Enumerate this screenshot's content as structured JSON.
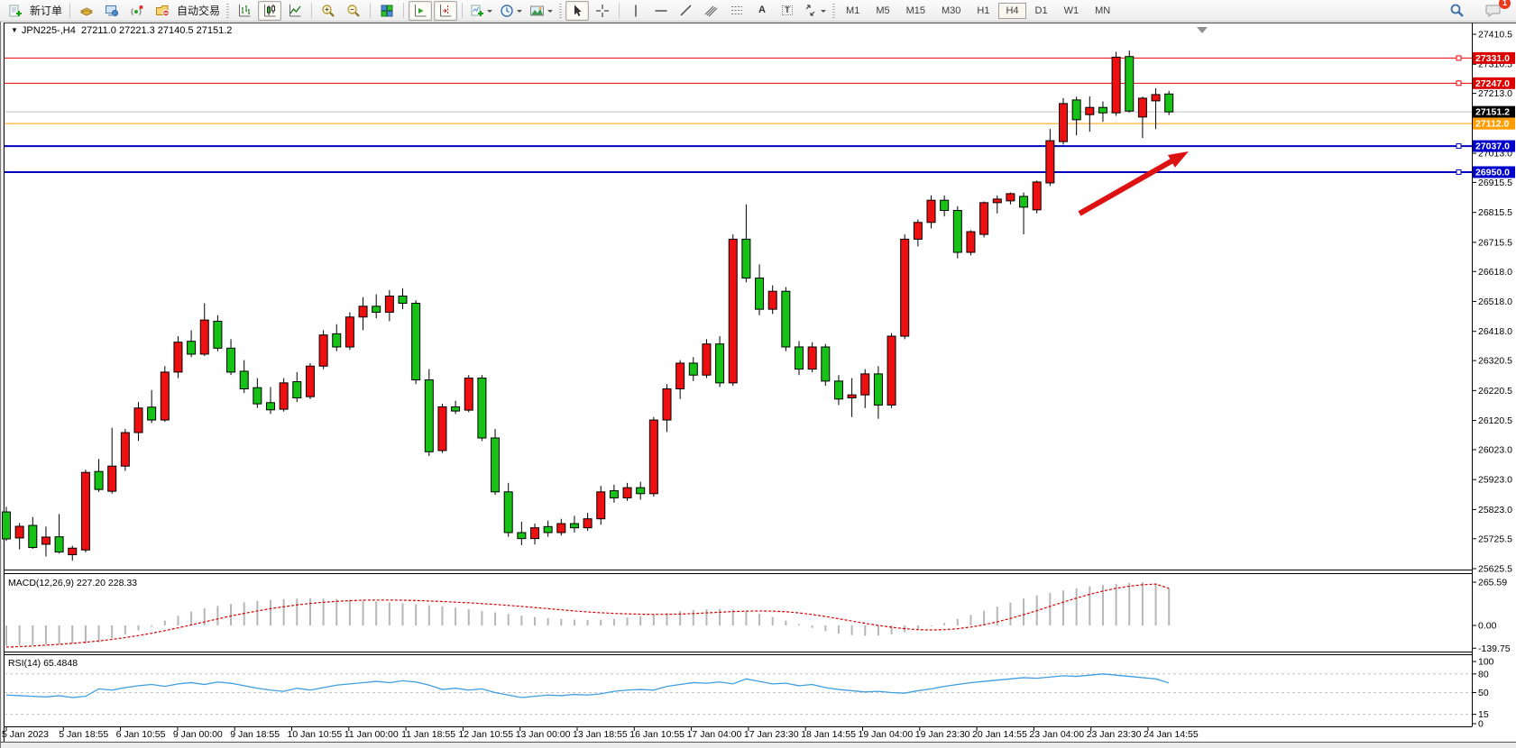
{
  "toolbar": {
    "new_order_label": "新订单",
    "auto_trading_label": "自动交易",
    "timeframes": [
      "M1",
      "M5",
      "M15",
      "M30",
      "H1",
      "H4",
      "D1",
      "W1",
      "MN"
    ],
    "active_timeframe": "H4",
    "notification_count": "1",
    "text_tool_glyph": "A",
    "label_tool_glyph": "T"
  },
  "chart": {
    "menu_glyph": "▼",
    "symbol_period": "JPN225-,H4",
    "ohlc_text": "27211.0 27221.3 27140.5 27151.2",
    "macd_label": "MACD(12,26,9) 227.20 228.33",
    "rsi_label": "RSI(14) 65.4848"
  },
  "chart_data": {
    "type": "candlestick",
    "symbol": "JPN225-",
    "period": "H4",
    "title": "JPN225-,H4  27211.0 27221.3 27140.5 27151.2",
    "current_ohlc": {
      "open": 27211.0,
      "high": 27221.3,
      "low": 27140.5,
      "close": 27151.2
    },
    "ylim": [
      25625.5,
      27410.5
    ],
    "grid": false,
    "legend_position": "none",
    "colors": {
      "bull": "#ee1010",
      "bear": "#16c216",
      "wick": "#000000",
      "macd_hist": "#b6b6b6",
      "macd_signal": "#d70000",
      "rsi_line": "#3f9fe0",
      "level_red": "#ee0000",
      "level_orange": "#ff9d00",
      "level_blue": "#0000bb",
      "current_line": "#c0c0c0",
      "arrow": "#dd1111"
    },
    "price_axis_ticks": [
      27410.5,
      27310.5,
      27213.0,
      27013.0,
      26915.5,
      26815.5,
      26715.5,
      26618.0,
      26518.0,
      26418.0,
      26320.5,
      26220.5,
      26120.5,
      26023.0,
      25923.0,
      25823.0,
      25725.5,
      25625.5
    ],
    "price_lines": [
      {
        "value": 27331.0,
        "label": "27331.0",
        "color": "#ee0000",
        "badge_bg": "#dd0000",
        "width": 1,
        "marker": true
      },
      {
        "value": 27247.0,
        "label": "27247.0",
        "color": "#ee0000",
        "badge_bg": "#dd0000",
        "width": 1,
        "marker": true
      },
      {
        "value": 27151.2,
        "label": "27151.2",
        "color": "#c0c0c0",
        "badge_bg": "#000000",
        "width": 1,
        "marker": false
      },
      {
        "value": 27112.0,
        "label": "27112.0",
        "color": "#ff9d00",
        "badge_bg": "#ff9d00",
        "width": 1,
        "marker": false
      },
      {
        "value": 27037.0,
        "label": "27037.0",
        "color": "#0000bb",
        "badge_bg": "#0000cc",
        "width": 2,
        "marker": true
      },
      {
        "value": 26950.0,
        "label": "26950.0",
        "color": "#0000bb",
        "badge_bg": "#0000cc",
        "width": 2,
        "marker": true
      }
    ],
    "time_labels": [
      "5 Jan 2023",
      "5 Jan 18:55",
      "6 Jan 10:55",
      "9 Jan 00:00",
      "9 Jan 18:55",
      "10 Jan 10:55",
      "11 Jan 00:00",
      "11 Jan 18:55",
      "12 Jan 10:55",
      "13 Jan 00:00",
      "13 Jan 18:55",
      "16 Jan 10:55",
      "17 Jan 04:00",
      "17 Jan 23:30",
      "18 Jan 14:55",
      "19 Jan 04:00",
      "19 Jan 23:30",
      "20 Jan 14:55",
      "23 Jan 04:00",
      "23 Jan 23:30",
      "24 Jan 14:55"
    ],
    "candles": [
      [
        25815,
        25832,
        25718,
        25725
      ],
      [
        25728,
        25778,
        25690,
        25767
      ],
      [
        25770,
        25798,
        25692,
        25696
      ],
      [
        25707,
        25766,
        25666,
        25731
      ],
      [
        25732,
        25808,
        25676,
        25681
      ],
      [
        25672,
        25702,
        25652,
        25694
      ],
      [
        25688,
        25956,
        25680,
        25947
      ],
      [
        25950,
        25992,
        25882,
        25890
      ],
      [
        25884,
        26096,
        25876,
        25968
      ],
      [
        25968,
        26092,
        25952,
        26080
      ],
      [
        26080,
        26182,
        26052,
        26162
      ],
      [
        26165,
        26222,
        26112,
        26122
      ],
      [
        26122,
        26302,
        26116,
        26282
      ],
      [
        26282,
        26402,
        26262,
        26382
      ],
      [
        26385,
        26422,
        26332,
        26342
      ],
      [
        26342,
        26512,
        26336,
        26456
      ],
      [
        26452,
        26472,
        26352,
        26362
      ],
      [
        26362,
        26392,
        26272,
        26282
      ],
      [
        26285,
        26322,
        26212,
        26226
      ],
      [
        26230,
        26262,
        26162,
        26176
      ],
      [
        26180,
        26232,
        26142,
        26156
      ],
      [
        26158,
        26262,
        26150,
        26246
      ],
      [
        26250,
        26282,
        26182,
        26196
      ],
      [
        26200,
        26312,
        26192,
        26302
      ],
      [
        26302,
        26422,
        26292,
        26406
      ],
      [
        26410,
        26442,
        26352,
        26366
      ],
      [
        26366,
        26482,
        26356,
        26466
      ],
      [
        26466,
        26532,
        26422,
        26502
      ],
      [
        26502,
        26542,
        26462,
        26482
      ],
      [
        26482,
        26556,
        26452,
        26536
      ],
      [
        26536,
        26562,
        26492,
        26512
      ],
      [
        26512,
        26522,
        26242,
        26256
      ],
      [
        26256,
        26292,
        26002,
        26016
      ],
      [
        26020,
        26176,
        26012,
        26166
      ],
      [
        26166,
        26186,
        26142,
        26152
      ],
      [
        26155,
        26272,
        26148,
        26262
      ],
      [
        26262,
        26272,
        26052,
        26062
      ],
      [
        26062,
        26092,
        25872,
        25882
      ],
      [
        25882,
        25912,
        25732,
        25746
      ],
      [
        25746,
        25782,
        25704,
        25726
      ],
      [
        25726,
        25776,
        25706,
        25762
      ],
      [
        25766,
        25786,
        25732,
        25746
      ],
      [
        25746,
        25792,
        25736,
        25776
      ],
      [
        25776,
        25802,
        25746,
        25762
      ],
      [
        25762,
        25812,
        25752,
        25792
      ],
      [
        25792,
        25902,
        25772,
        25882
      ],
      [
        25886,
        25906,
        25846,
        25862
      ],
      [
        25862,
        25912,
        25852,
        25896
      ],
      [
        25896,
        25916,
        25856,
        25876
      ],
      [
        25876,
        26132,
        25866,
        26122
      ],
      [
        26122,
        26242,
        26082,
        26226
      ],
      [
        26226,
        26322,
        26192,
        26312
      ],
      [
        26312,
        26332,
        26252,
        26272
      ],
      [
        26272,
        26392,
        26262,
        26376
      ],
      [
        26376,
        26402,
        26232,
        26246
      ],
      [
        26246,
        26742,
        26236,
        26726
      ],
      [
        26726,
        26842,
        26582,
        26596
      ],
      [
        26596,
        26642,
        26472,
        26492
      ],
      [
        26492,
        26572,
        26476,
        26552
      ],
      [
        26552,
        26566,
        26352,
        26366
      ],
      [
        26366,
        26386,
        26272,
        26292
      ],
      [
        26292,
        26382,
        26282,
        26366
      ],
      [
        26366,
        26376,
        26236,
        26252
      ],
      [
        26252,
        26272,
        26172,
        26192
      ],
      [
        26196,
        26262,
        26132,
        26206
      ],
      [
        26206,
        26292,
        26162,
        26276
      ],
      [
        26276,
        26302,
        26126,
        26172
      ],
      [
        26172,
        26412,
        26162,
        26402
      ],
      [
        26402,
        26742,
        26392,
        26726
      ],
      [
        26726,
        26792,
        26702,
        26782
      ],
      [
        26782,
        26872,
        26762,
        26856
      ],
      [
        26856,
        26872,
        26802,
        26822
      ],
      [
        26822,
        26836,
        26662,
        26682
      ],
      [
        26682,
        26756,
        26672,
        26751
      ],
      [
        26742,
        26852,
        26732,
        26848
      ],
      [
        26848,
        26872,
        26812,
        26860
      ],
      [
        26854,
        26882,
        26842,
        26878
      ],
      [
        26869,
        26882,
        26742,
        26833
      ],
      [
        26824,
        26922,
        26812,
        26917
      ],
      [
        26914,
        27094,
        26904,
        27055
      ],
      [
        27052,
        27197,
        27042,
        27179
      ],
      [
        27191,
        27202,
        27073,
        27125
      ],
      [
        27142,
        27203,
        27085,
        27166
      ],
      [
        27166,
        27186,
        27118,
        27148
      ],
      [
        27148,
        27352,
        27138,
        27334
      ],
      [
        27336,
        27356,
        27149,
        27154
      ],
      [
        27134,
        27202,
        27064,
        27197
      ],
      [
        27188,
        27230,
        27094,
        27209
      ],
      [
        27211.0,
        27221.3,
        27140.5,
        27151.2
      ]
    ],
    "macd": {
      "label": "MACD(12,26,9)",
      "current_macd": 227.2,
      "current_signal": 228.33,
      "axis_values": [
        265.59,
        0,
        -139.75
      ],
      "axis_labels": [
        "265.59",
        "0.00",
        "-139.75"
      ],
      "values": [
        -125,
        -122,
        -120,
        -118,
        -115,
        -112,
        -110,
        -105,
        -80,
        -55,
        -30,
        -8,
        30,
        60,
        85,
        105,
        120,
        132,
        142,
        150,
        157,
        162,
        165,
        166,
        165,
        162,
        158,
        153,
        148,
        142,
        136,
        130,
        124,
        118,
        110,
        100,
        90,
        80,
        70,
        60,
        52,
        45,
        40,
        36,
        34,
        35,
        40,
        48,
        58,
        68,
        78,
        88,
        95,
        100,
        102,
        98,
        88,
        72,
        52,
        30,
        8,
        -15,
        -35,
        -50,
        -60,
        -64,
        -62,
        -55,
        -42,
        -25,
        -5,
        15,
        40,
        65,
        90,
        115,
        140,
        165,
        185,
        200,
        215,
        228,
        240,
        248,
        256,
        262,
        265.59,
        258,
        227.2
      ],
      "signal": [
        -133,
        -130,
        -126,
        -121,
        -116,
        -110,
        -103,
        -95,
        -86,
        -75,
        -62,
        -48,
        -32,
        -15,
        3,
        22,
        40,
        58,
        74,
        89,
        103,
        115,
        126,
        135,
        142,
        148,
        152,
        155,
        156,
        156,
        155,
        153,
        150,
        147,
        143,
        139,
        134,
        129,
        123,
        117,
        110,
        103,
        96,
        89,
        83,
        78,
        74,
        71,
        69,
        68,
        68,
        70,
        73,
        77,
        81,
        85,
        88,
        89,
        88,
        84,
        77,
        67,
        55,
        41,
        27,
        13,
        0,
        -11,
        -20,
        -26,
        -28,
        -26,
        -20,
        -10,
        4,
        22,
        43,
        66,
        91,
        117,
        143,
        168,
        191,
        211,
        228,
        241,
        250,
        254,
        228.33
      ]
    },
    "rsi": {
      "label": "RSI(14)",
      "period": 14,
      "current": 65.4848,
      "levels": [
        80,
        50,
        15
      ],
      "axis_values": [
        100,
        80,
        50,
        15,
        0
      ],
      "axis_labels": [
        "100",
        "80",
        "50",
        "15",
        "0"
      ],
      "values": [
        46,
        45,
        44,
        43,
        45,
        42,
        44,
        56,
        54,
        58,
        61,
        63,
        60,
        64,
        66,
        63,
        67,
        65,
        61,
        57,
        54,
        52,
        57,
        54,
        58,
        62,
        64,
        66,
        68,
        66,
        69,
        67,
        62,
        55,
        57,
        54,
        56,
        50,
        46,
        42,
        44,
        46,
        45,
        47,
        46,
        48,
        52,
        54,
        55,
        54,
        60,
        63,
        66,
        65,
        67,
        64,
        72,
        68,
        64,
        65,
        61,
        63,
        58,
        55,
        53,
        51,
        52,
        50,
        49,
        53,
        56,
        60,
        63,
        66,
        68,
        70,
        72,
        74,
        73,
        75,
        77,
        76,
        78,
        80,
        78,
        76,
        74,
        72,
        65.4848
      ]
    },
    "arrow": {
      "from": [
        1197,
        237
      ],
      "to": [
        1318,
        168
      ],
      "color": "#dd1111"
    }
  }
}
